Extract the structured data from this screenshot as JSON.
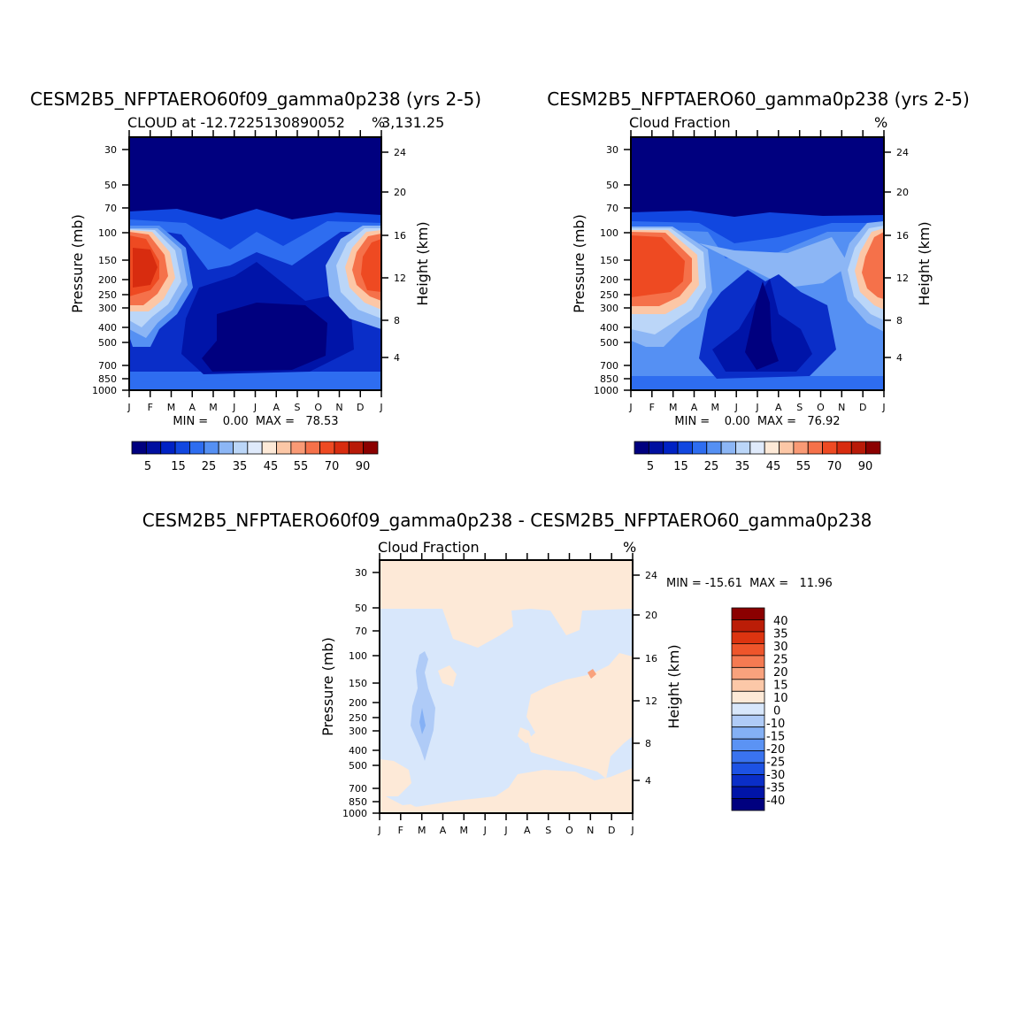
{
  "colors": {
    "lev_full": [
      "#00007f",
      "#000fa0",
      "#0022c4",
      "#1147e0",
      "#2e6df0",
      "#5590f3",
      "#8cb6f5",
      "#bbd6f8",
      "#dfeafb",
      "#fde9d7",
      "#fcc7a6",
      "#f99a75",
      "#f5714a",
      "#ee4a22",
      "#d82c0f",
      "#b81a08",
      "#8b0000"
    ],
    "lev_diff": [
      "#00007f",
      "#0014a8",
      "#0a2ec8",
      "#1d52e4",
      "#3a73ef",
      "#5b93f4",
      "#84b0f5",
      "#afcbf7",
      "#d8e7fb",
      "#fde9d7",
      "#fcc8a8",
      "#f9a27d",
      "#f57a52",
      "#ee552b",
      "#dc3410",
      "#bb1d07",
      "#8b0000"
    ]
  },
  "chart_data": [
    {
      "type": "heatmap",
      "title": "CESM2B5_NFPTAERO60f09_gamma0p238 (yrs 2-5)",
      "subtitle_left": "CLOUD at -12.7225130890052",
      "subtitle_right": "3,131.25",
      "units": "%",
      "ylabel": "Pressure (mb)",
      "ylabel_right": "Height (km)",
      "x_ticks": [
        "J",
        "F",
        "M",
        "A",
        "M",
        "J",
        "J",
        "A",
        "S",
        "O",
        "N",
        "D",
        "J"
      ],
      "y_ticks": [
        "30",
        "50",
        "70",
        "100",
        "150",
        "200",
        "250",
        "300",
        "400",
        "500",
        "700",
        "850",
        "1000"
      ],
      "y_ticks_right": [
        "24",
        "20",
        "16",
        "12",
        "8",
        "4"
      ],
      "stats": "MIN =    0.00  MAX =   78.53",
      "colorbar_labels": [
        "5",
        "15",
        "25",
        "35",
        "45",
        "55",
        "70",
        "90"
      ]
    },
    {
      "type": "heatmap",
      "title": "CESM2B5_NFPTAERO60_gamma0p238 (yrs 2-5)",
      "subtitle_left": "Cloud Fraction",
      "subtitle_right": "",
      "units": "%",
      "ylabel": "Pressure (mb)",
      "ylabel_right": "Height (km)",
      "x_ticks": [
        "J",
        "F",
        "M",
        "A",
        "M",
        "J",
        "J",
        "A",
        "S",
        "O",
        "N",
        "D",
        "J"
      ],
      "y_ticks": [
        "30",
        "50",
        "70",
        "100",
        "150",
        "200",
        "250",
        "300",
        "400",
        "500",
        "700",
        "850",
        "1000"
      ],
      "y_ticks_right": [
        "24",
        "20",
        "16",
        "12",
        "8",
        "4"
      ],
      "stats": "MIN =    0.00  MAX =   76.92",
      "colorbar_labels": [
        "5",
        "15",
        "25",
        "35",
        "45",
        "55",
        "70",
        "90"
      ]
    },
    {
      "type": "heatmap",
      "title": "CESM2B5_NFPTAERO60f09_gamma0p238 - CESM2B5_NFPTAERO60_gamma0p238",
      "subtitle_left": "Cloud Fraction",
      "subtitle_right": "",
      "units": "%",
      "ylabel": "Pressure (mb)",
      "ylabel_right": "Height (km)",
      "x_ticks": [
        "J",
        "F",
        "M",
        "A",
        "M",
        "J",
        "J",
        "A",
        "S",
        "O",
        "N",
        "D",
        "J"
      ],
      "y_ticks": [
        "30",
        "50",
        "70",
        "100",
        "150",
        "200",
        "250",
        "300",
        "400",
        "500",
        "700",
        "850",
        "1000"
      ],
      "y_ticks_right": [
        "24",
        "20",
        "16",
        "12",
        "8",
        "4"
      ],
      "stats": "MIN = -15.61  MAX =   11.96",
      "colorbar_labels": [
        "40",
        "35",
        "30",
        "25",
        "20",
        "15",
        "10",
        "0",
        "-10",
        "-15",
        "-20",
        "-25",
        "-30",
        "-35",
        "-40"
      ]
    }
  ]
}
